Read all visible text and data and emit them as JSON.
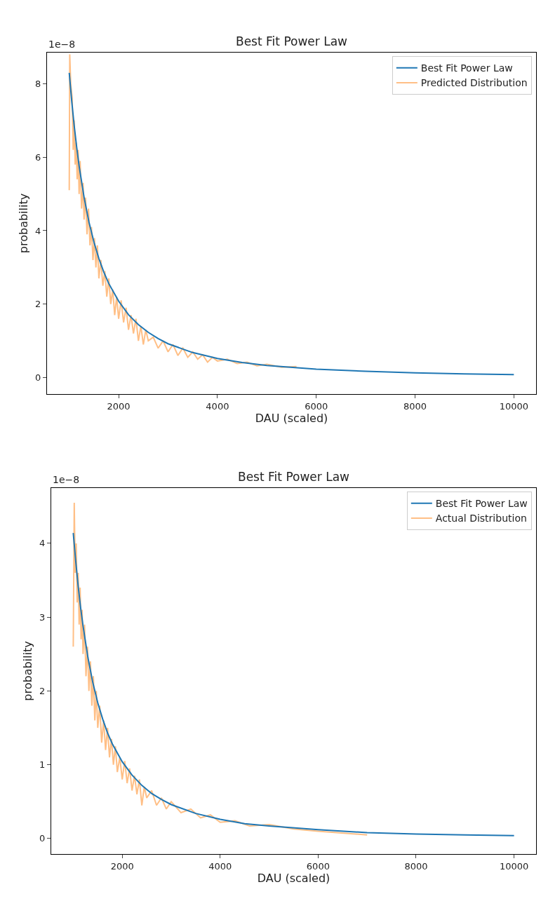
{
  "chart_data": [
    {
      "type": "line",
      "title": "Best Fit Power Law",
      "xlabel": "DAU (scaled)",
      "ylabel": "probability",
      "annotations": [
        "1e−8"
      ],
      "xlim": [
        550,
        10450
      ],
      "xticks": [
        2000,
        4000,
        6000,
        8000,
        10000
      ],
      "ylim": [
        -0.45,
        8.85
      ],
      "yticks": [
        0,
        2,
        4,
        6,
        8
      ],
      "legend": "top right",
      "series": [
        {
          "name": "Best Fit Power Law",
          "color": "#1f77b4",
          "x": [
            1000,
            1050,
            1100,
            1150,
            1200,
            1300,
            1400,
            1500,
            1600,
            1700,
            1800,
            2000,
            2200,
            2400,
            2600,
            2800,
            3000,
            3500,
            4000,
            4500,
            5000,
            6000,
            7000,
            8000,
            9000,
            10000
          ],
          "values": [
            8.3,
            7.53,
            6.86,
            6.28,
            5.76,
            4.91,
            4.23,
            3.69,
            3.24,
            2.87,
            2.56,
            2.08,
            1.71,
            1.44,
            1.23,
            1.06,
            0.92,
            0.68,
            0.52,
            0.41,
            0.33,
            0.23,
            0.17,
            0.13,
            0.1,
            0.08
          ]
        },
        {
          "name": "Predicted Distribution",
          "color": "#ffbf86",
          "x": [
            1000,
            1010,
            1030,
            1060,
            1080,
            1100,
            1120,
            1140,
            1160,
            1180,
            1200,
            1220,
            1250,
            1280,
            1300,
            1330,
            1360,
            1390,
            1420,
            1450,
            1480,
            1510,
            1540,
            1570,
            1600,
            1640,
            1680,
            1720,
            1760,
            1800,
            1840,
            1880,
            1920,
            1960,
            2000,
            2050,
            2100,
            2150,
            2200,
            2250,
            2300,
            2350,
            2400,
            2450,
            2500,
            2550,
            2600,
            2700,
            2800,
            2900,
            3000,
            3100,
            3200,
            3300,
            3400,
            3500,
            3600,
            3700,
            3800,
            3900,
            4000,
            4200,
            4400,
            4600,
            4800,
            5000,
            5300,
            5600
          ],
          "values": [
            5.1,
            8.8,
            8.0,
            7.6,
            6.2,
            7.0,
            5.8,
            6.4,
            5.4,
            6.2,
            5.0,
            5.9,
            4.6,
            5.3,
            4.3,
            4.9,
            3.9,
            4.6,
            3.6,
            4.1,
            3.2,
            3.8,
            3.0,
            3.6,
            2.7,
            3.2,
            2.5,
            2.9,
            2.2,
            2.7,
            2.0,
            2.4,
            1.7,
            2.2,
            1.6,
            2.1,
            1.5,
            1.9,
            1.3,
            1.7,
            1.2,
            1.6,
            1.0,
            1.4,
            0.9,
            1.3,
            1.0,
            1.1,
            0.8,
            1.0,
            0.7,
            0.9,
            0.6,
            0.8,
            0.55,
            0.7,
            0.5,
            0.62,
            0.42,
            0.55,
            0.45,
            0.5,
            0.38,
            0.42,
            0.32,
            0.36,
            0.28,
            0.3
          ]
        }
      ]
    },
    {
      "type": "line",
      "title": "Best Fit Power Law",
      "xlabel": "DAU (scaled)",
      "ylabel": "probability",
      "annotations": [
        "1e−8"
      ],
      "xlim": [
        550,
        10450
      ],
      "xticks": [
        2000,
        4000,
        6000,
        8000,
        10000
      ],
      "ylim": [
        -0.21,
        4.75
      ],
      "yticks": [
        0,
        1,
        2,
        3,
        4
      ],
      "legend": "top right",
      "series": [
        {
          "name": "Best Fit Power Law",
          "color": "#1f77b4",
          "x": [
            1000,
            1050,
            1100,
            1150,
            1200,
            1300,
            1400,
            1500,
            1600,
            1700,
            1800,
            2000,
            2200,
            2400,
            2600,
            2800,
            3000,
            3500,
            4000,
            4500,
            5000,
            6000,
            7000,
            8000,
            9000,
            10000
          ],
          "values": [
            4.14,
            3.76,
            3.42,
            3.13,
            2.88,
            2.45,
            2.11,
            1.84,
            1.62,
            1.43,
            1.28,
            1.04,
            0.86,
            0.72,
            0.61,
            0.53,
            0.46,
            0.34,
            0.26,
            0.2,
            0.17,
            0.12,
            0.08,
            0.06,
            0.05,
            0.04
          ]
        },
        {
          "name": "Actual Distribution",
          "color": "#ffbf86",
          "x": [
            1000,
            1020,
            1040,
            1060,
            1080,
            1100,
            1120,
            1140,
            1160,
            1180,
            1200,
            1230,
            1260,
            1290,
            1320,
            1350,
            1380,
            1410,
            1440,
            1470,
            1500,
            1540,
            1580,
            1620,
            1660,
            1700,
            1740,
            1780,
            1820,
            1860,
            1900,
            1950,
            2000,
            2050,
            2100,
            2150,
            2200,
            2250,
            2300,
            2350,
            2400,
            2450,
            2500,
            2600,
            2700,
            2800,
            2900,
            3000,
            3200,
            3400,
            3600,
            3800,
            4000,
            4300,
            4600,
            5000,
            5500,
            6000,
            7000
          ],
          "values": [
            2.6,
            4.55,
            3.6,
            4.0,
            3.2,
            3.6,
            2.9,
            3.4,
            2.7,
            3.1,
            2.5,
            2.9,
            2.2,
            2.6,
            2.0,
            2.4,
            1.8,
            2.2,
            1.6,
            2.0,
            1.5,
            1.8,
            1.3,
            1.6,
            1.2,
            1.5,
            1.1,
            1.35,
            1.0,
            1.25,
            0.9,
            1.1,
            0.8,
            1.05,
            0.75,
            0.95,
            0.65,
            0.85,
            0.6,
            0.8,
            0.45,
            0.7,
            0.55,
            0.65,
            0.45,
            0.55,
            0.4,
            0.5,
            0.35,
            0.4,
            0.28,
            0.32,
            0.22,
            0.24,
            0.17,
            0.19,
            0.13,
            0.1,
            0.05
          ]
        }
      ]
    }
  ]
}
